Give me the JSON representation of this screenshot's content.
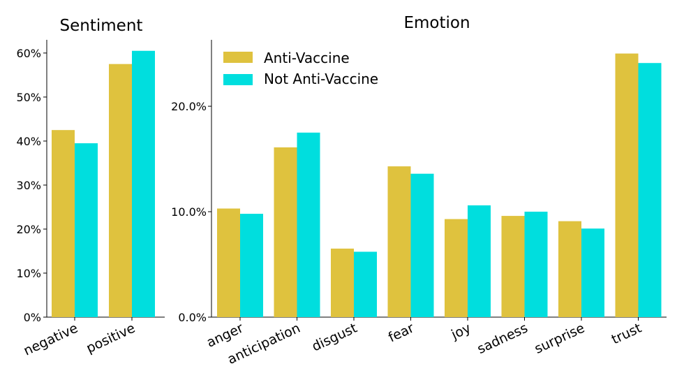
{
  "colors": {
    "anti": "#DFC23E",
    "not_anti": "#00DEDE"
  },
  "legend": {
    "items": [
      "Anti-Vaccine",
      "Not Anti-Vaccine"
    ]
  },
  "chart_data": [
    {
      "type": "bar",
      "title": "Sentiment",
      "categories": [
        "negative",
        "positive"
      ],
      "series": [
        {
          "name": "Anti-Vaccine",
          "values": [
            42.5,
            57.5
          ]
        },
        {
          "name": "Not Anti-Vaccine",
          "values": [
            39.5,
            60.5
          ]
        }
      ],
      "ylim": [
        0,
        63
      ],
      "yticks": [
        "0%",
        "10%",
        "20%",
        "30%",
        "40%",
        "50%",
        "60%"
      ],
      "xlabel": "",
      "ylabel": "",
      "grid": false
    },
    {
      "type": "bar",
      "title": "Emotion",
      "categories": [
        "anger",
        "anticipation",
        "disgust",
        "fear",
        "joy",
        "sadness",
        "surprise",
        "trust"
      ],
      "series": [
        {
          "name": "Anti-Vaccine",
          "values": [
            10.3,
            16.1,
            6.5,
            14.3,
            9.3,
            9.6,
            9.1,
            25.0
          ]
        },
        {
          "name": "Not Anti-Vaccine",
          "values": [
            9.8,
            17.5,
            6.2,
            13.6,
            10.6,
            10.0,
            8.4,
            24.1
          ]
        }
      ],
      "ylim": [
        0,
        26.3
      ],
      "yticks": [
        "0.0%",
        "10.0%",
        "20.0%"
      ],
      "legend_position": "top-left",
      "xlabel": "",
      "ylabel": "",
      "grid": false
    }
  ]
}
